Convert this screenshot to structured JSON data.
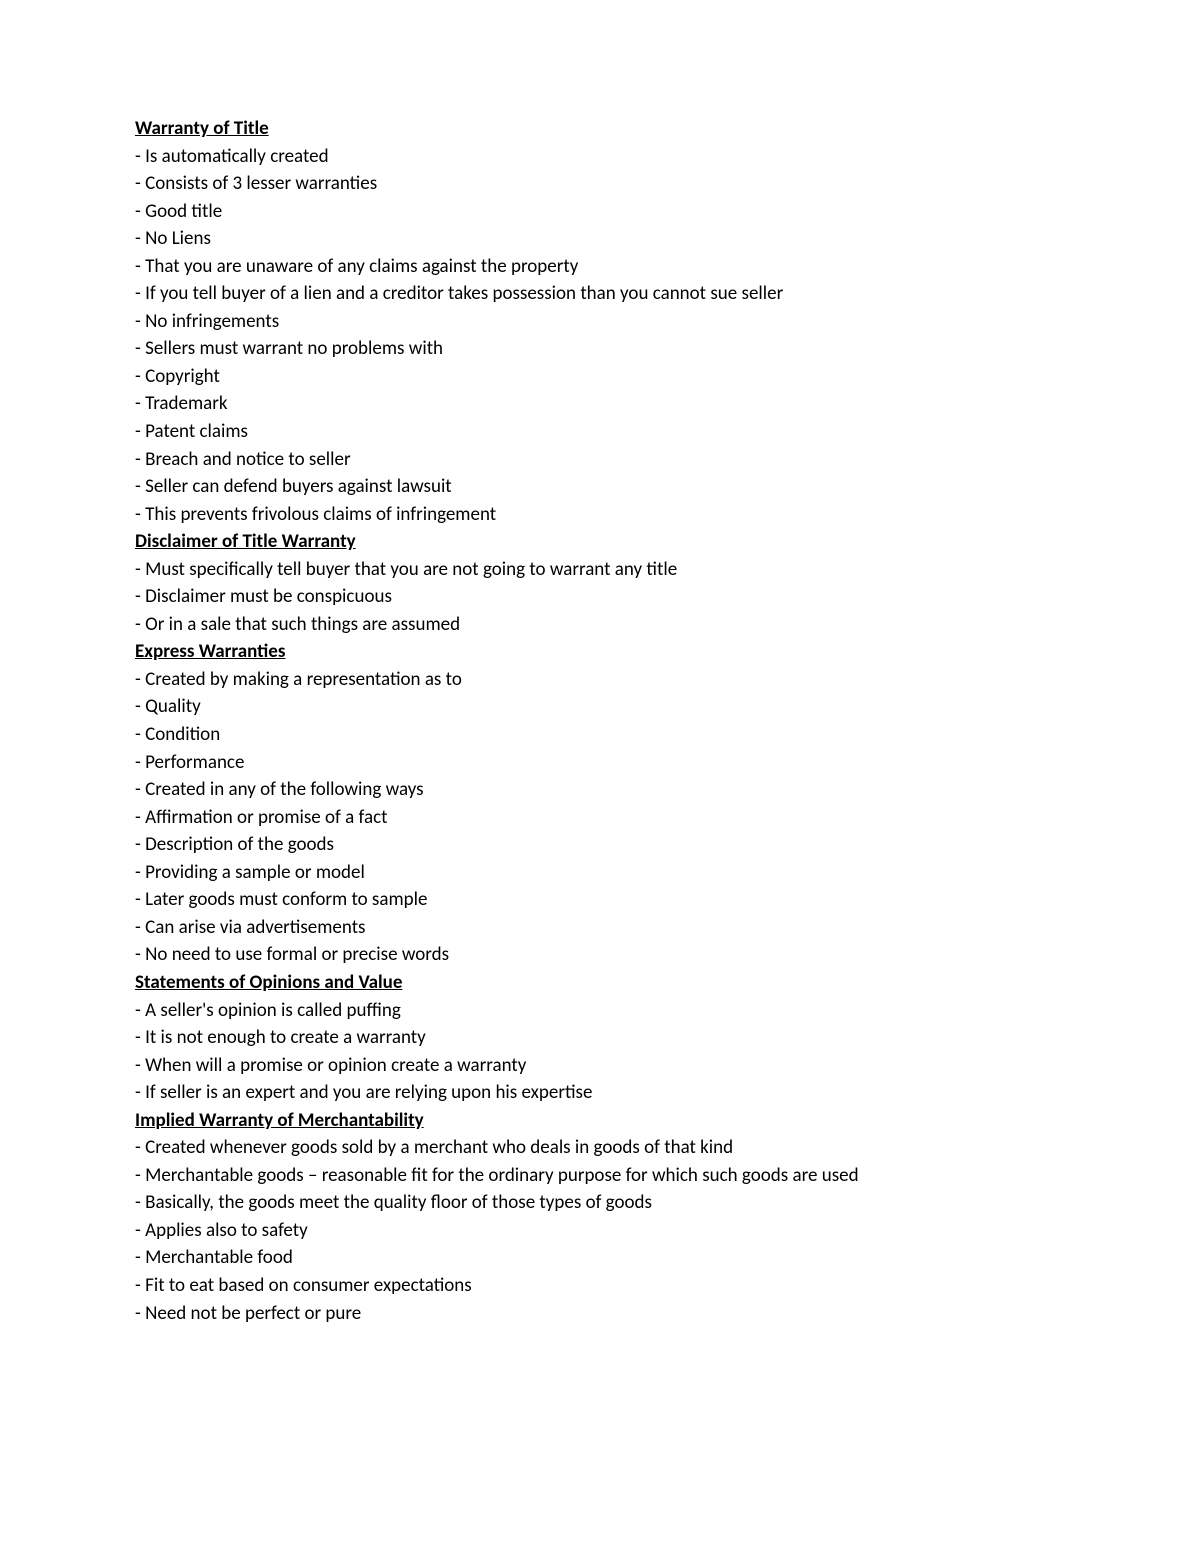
{
  "sections": {
    "warranty_of_title": {
      "heading": "Warranty of Title",
      "items": {
        "i0": "- Is automatically created",
        "i1": "- Consists of 3 lesser warranties",
        "i1_0": "- Good title",
        "i1_1": "- No Liens",
        "i1_1_0": "- That you are unaware of any claims against the property",
        "i1_1_1": "- If you tell buyer of a lien and a creditor takes possession than you cannot sue seller",
        "i1_2": "- No infringements",
        "i1_2_0": "- Sellers must warrant no problems with",
        "i1_2_0_0": "- Copyright",
        "i1_2_0_1": "- Trademark",
        "i1_2_0_2": "- Patent claims",
        "i1_2_1": "- Breach and notice to seller",
        "i1_2_1_0": "- Seller can defend buyers against lawsuit",
        "i1_2_1_1": "- This prevents frivolous claims of infringement"
      }
    },
    "disclaimer": {
      "heading": "Disclaimer of Title Warranty",
      "items": {
        "i0": "- Must specifically tell buyer that you are not going to warrant any title",
        "i1": "- Disclaimer must be conspicuous",
        "i2": "- Or in a sale that such things are assumed"
      }
    },
    "express": {
      "heading": "Express Warranties",
      "items": {
        "i0": "- Created by making a representation as to",
        "i0_0": "- Quality",
        "i0_1": "- Condition",
        "i0_2": "- Performance",
        "i1": "- Created in any of the following ways",
        "i1_0": "- Affirmation or promise of a fact",
        "i1_1": "- Description of the goods",
        "i1_2": "- Providing a sample or model",
        "i1_3": "- Later goods must conform to sample",
        "i2": "- Can arise via advertisements",
        "i3": "- No need to use formal or precise words"
      }
    },
    "opinions": {
      "heading": "Statements of Opinions and Value",
      "items": {
        "i0": "- A seller's opinion is called puffing",
        "i0_0": "- It is not enough to create a warranty",
        "i1": "- When will a promise or opinion create a warranty",
        "i1_0": "- If seller is an expert and you are relying upon his expertise"
      }
    },
    "implied": {
      "heading": "Implied Warranty of Merchantability",
      "items": {
        "i0": "- Created whenever goods sold by a merchant who deals in goods of that kind",
        "i1": "- Merchantable goods – reasonable fit for the ordinary purpose for which such goods are used",
        "i1_0": "- Basically, the goods meet the quality floor of those types of goods",
        "i1_1": "- Applies also to safety",
        "i2": "- Merchantable food",
        "i2_0": "- Fit to eat based on consumer expectations",
        "i2_1": "- Need not be perfect or pure"
      }
    }
  }
}
